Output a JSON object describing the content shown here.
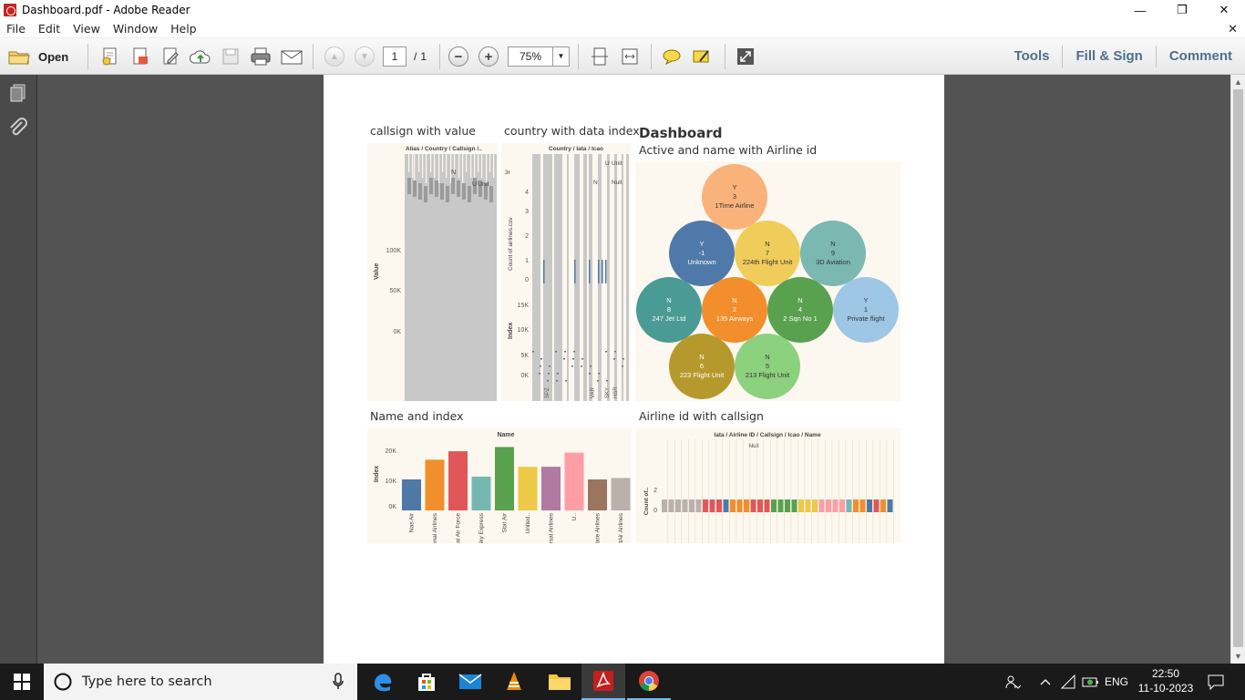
{
  "window": {
    "title": "Dashboard.pdf - Adobe Reader",
    "min": "—",
    "max": "❐",
    "close": "✕"
  },
  "menu": {
    "items": [
      "File",
      "Edit",
      "View",
      "Window",
      "Help"
    ],
    "close": "✕"
  },
  "toolbar": {
    "open_label": "Open",
    "page_current": "1",
    "page_sep": "/",
    "page_total": "1",
    "zoom": "75%",
    "dd": "▼",
    "minus": "−",
    "plus": "+",
    "up": "▲",
    "down": "▼"
  },
  "right_links": [
    "Tools",
    "Fill & Sign",
    "Comment"
  ],
  "dashboard": {
    "title": "Dashboard",
    "sheet1": {
      "title": "callsign with value",
      "header": "Alias / Country / Callsign /..",
      "ylabel": "Value",
      "yticks": [
        "100K",
        "50K",
        "0K"
      ],
      "top_labels": [
        "N",
        "U",
        "Unit"
      ]
    },
    "sheet2": {
      "title": "country with data index",
      "header": "Country / Iata / Icao",
      "ylabel_top": "Count of airlines.csv",
      "yticks_top": [
        "4",
        "3",
        "2",
        "1",
        "0"
      ],
      "ylabel_bottom": "Index",
      "yticks_bottom": [
        "15K",
        "10K",
        "5K",
        "0K"
      ],
      "top_labels": [
        "3r",
        "U",
        "Unit",
        "N",
        "Null"
      ],
      "bottom_labels": [
        "SPZ",
        "VAR",
        "SKY",
        "HSR"
      ]
    },
    "sheet3": {
      "title": "Active and name with Airline id",
      "bubbles": [
        {
          "active": "Y",
          "id": "3",
          "name": "1Time Airline",
          "color": "#f9b37a"
        },
        {
          "active": "Y",
          "id": "-1",
          "name": "Unknown",
          "color": "#4f79a8"
        },
        {
          "active": "N",
          "id": "7",
          "name": "224th Flight Unit",
          "color": "#f0cd5a"
        },
        {
          "active": "N",
          "id": "9",
          "name": "3D Aviation",
          "color": "#7ab8b1"
        },
        {
          "active": "N",
          "id": "8",
          "name": "247 Jet Ltd",
          "color": "#4a9a95"
        },
        {
          "active": "N",
          "id": "2",
          "name": "135 Airways",
          "color": "#f28e2b"
        },
        {
          "active": "N",
          "id": "4",
          "name": "2 Sqn No 1",
          "color": "#59a14f"
        },
        {
          "active": "Y",
          "id": "1",
          "name": "Private flight",
          "color": "#9ec7e6"
        },
        {
          "active": "N",
          "id": "6",
          "name": "223 Flight Unit",
          "color": "#b6992d"
        },
        {
          "active": "N",
          "id": "5",
          "name": "213 Flight Unit",
          "color": "#8cd17d"
        }
      ]
    },
    "sheet4": {
      "title": "Name and index",
      "header": "Name",
      "ylabel": "Index",
      "yticks": [
        "20K",
        "10K",
        "0K"
      ]
    },
    "sheet5": {
      "title": "Airline id with callsign",
      "header": "Iata / Airline ID / Callsign / Icao / Name",
      "null_label": "Null",
      "ylabel": "Count of..",
      "yticks": [
        "2",
        "0"
      ]
    }
  },
  "chart_data": [
    {
      "type": "bar",
      "title": "Name and index",
      "xlabel": "Name",
      "ylabel": "Index",
      "ylim": [
        0,
        22000
      ],
      "categories": [
        "Nas Air",
        "National Airlines",
        "Royal Air Force",
        "Sky Express",
        "Star Air",
        "United..",
        "Universal Airlines",
        "U..",
        "Volare Airlines",
        "WestAir Airlines"
      ],
      "values": [
        11000,
        18000,
        21000,
        12000,
        22500,
        15500,
        15500,
        20500,
        11000,
        11500
      ],
      "colors": [
        "#4e79a7",
        "#f28e2b",
        "#e15759",
        "#76b7b2",
        "#59a14f",
        "#edc948",
        "#b07aa1",
        "#ff9da7",
        "#9c755f",
        "#bab0ac"
      ]
    },
    {
      "type": "bar",
      "title": "callsign with value",
      "ylabel": "Value",
      "ylim": [
        0,
        150000
      ],
      "yticks": [
        "100K",
        "50K",
        "0K"
      ]
    },
    {
      "type": "bar",
      "title": "country with data index",
      "ylabel": "Count of airlines.csv",
      "ylim": [
        0,
        4
      ],
      "yticks": [
        "4",
        "3",
        "2",
        "1",
        "0"
      ]
    }
  ],
  "taskbar": {
    "search_placeholder": "Type here to search",
    "lang": "ENG",
    "time": "22:50",
    "date": "11-10-2023"
  }
}
